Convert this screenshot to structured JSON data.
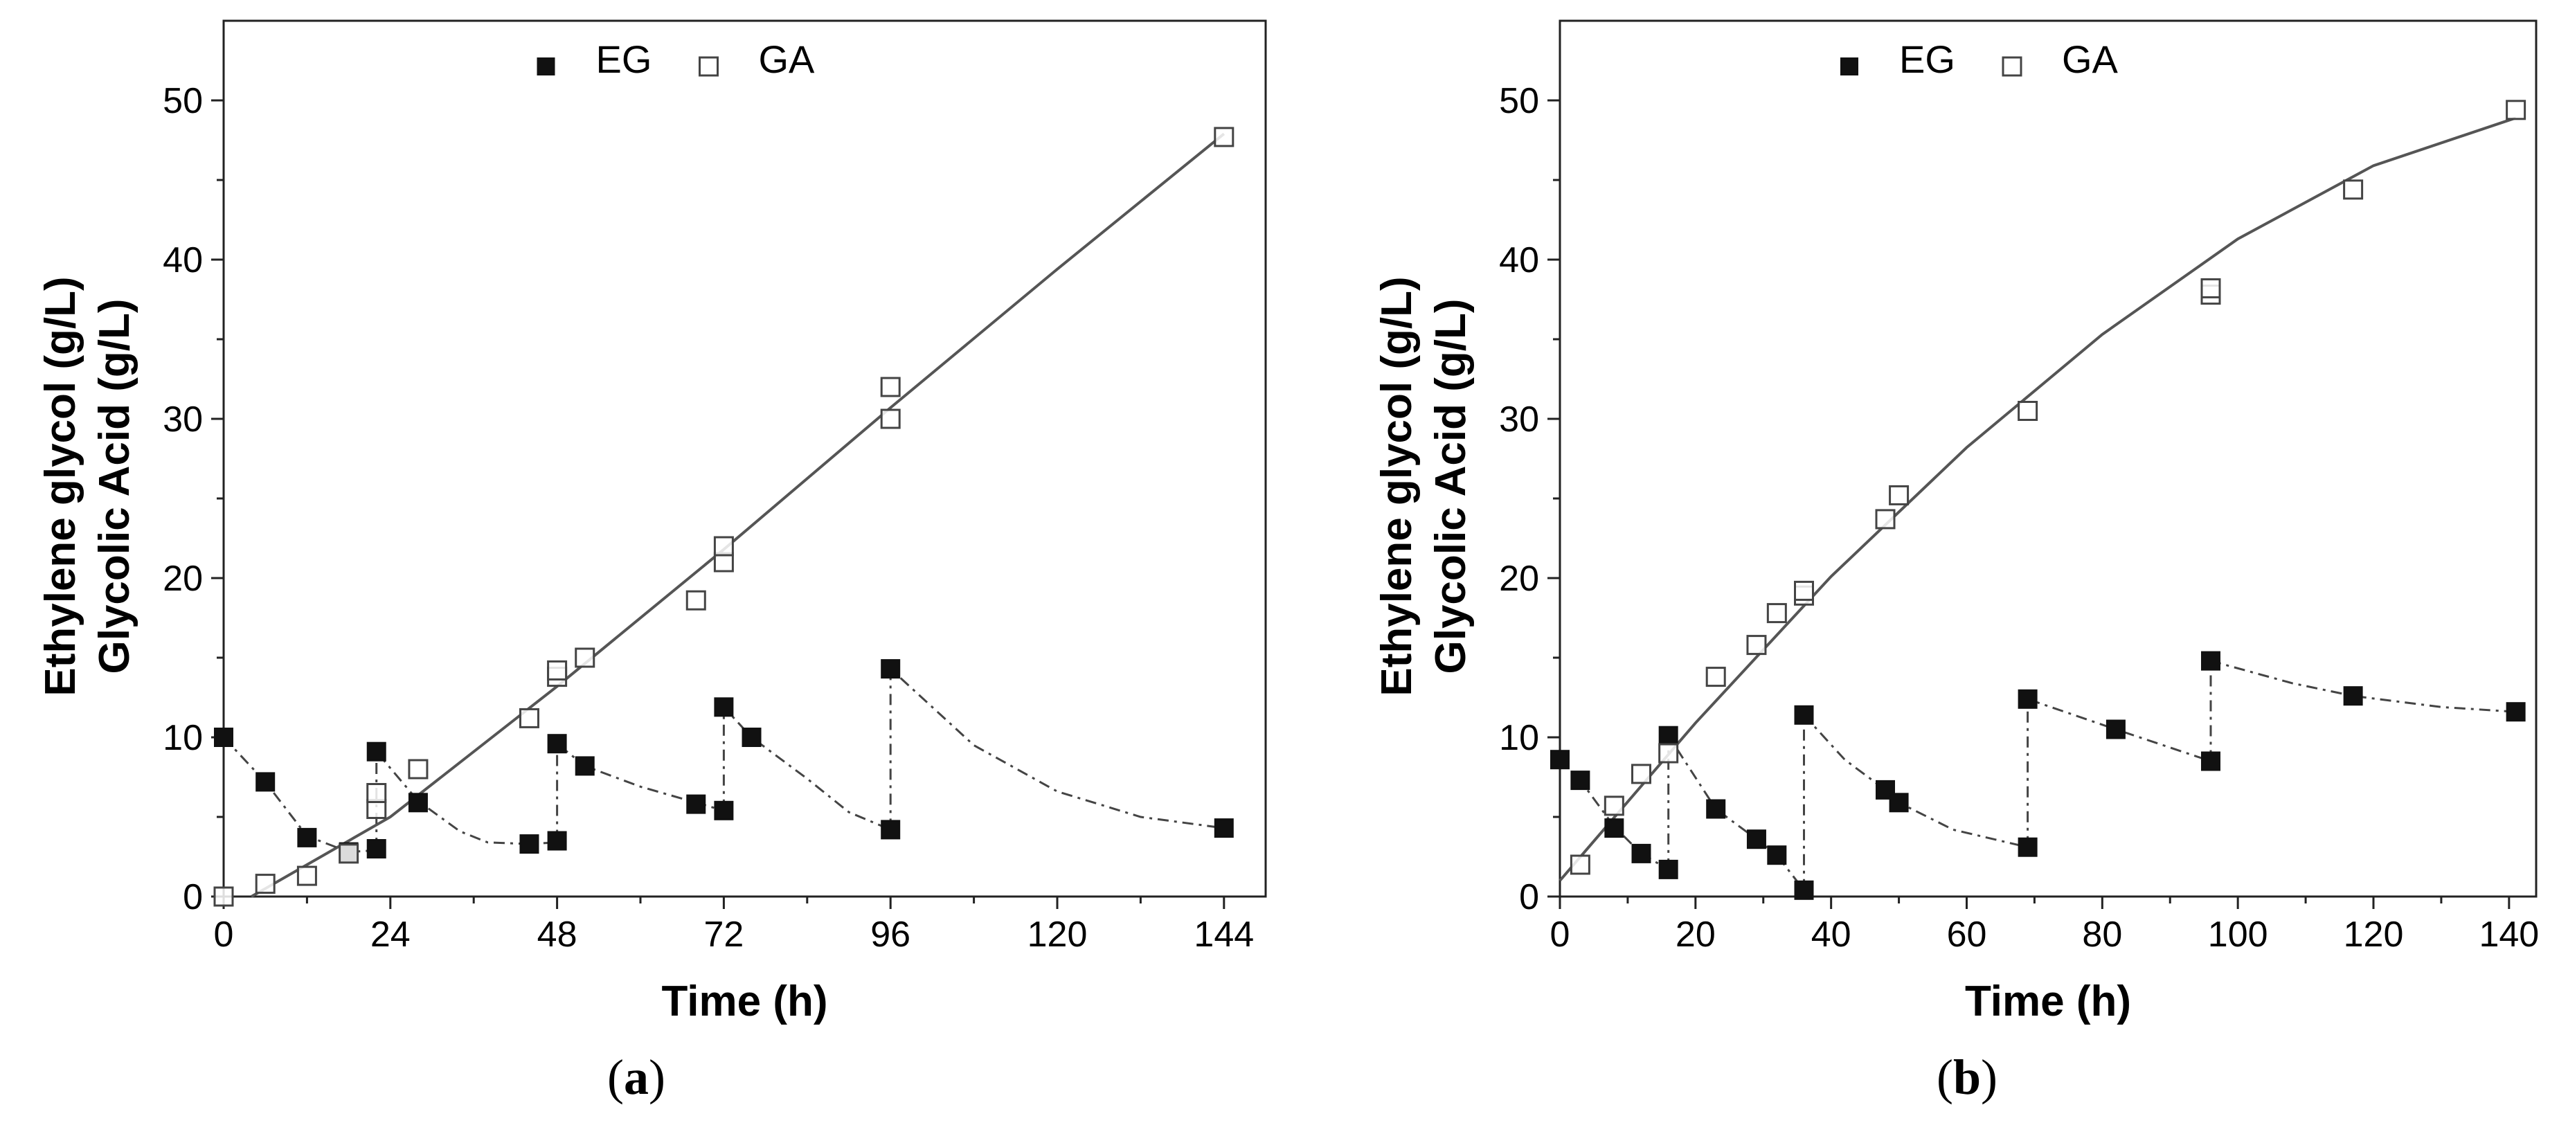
{
  "chart_data": [
    {
      "type": "scatter",
      "caption": "a",
      "xlabel": "Time (h)",
      "ylabel_line1": "Ethylene glycol (g/L)",
      "ylabel_line2": "Glycolic Acid (g/L)",
      "xlim": [
        0,
        150
      ],
      "ylim": [
        0,
        55
      ],
      "xticks": [
        0,
        24,
        48,
        72,
        96,
        120,
        144
      ],
      "yticks": [
        0,
        10,
        20,
        30,
        40,
        50
      ],
      "legend": {
        "placement": "top-center",
        "entries": [
          "EG",
          "GA"
        ]
      },
      "series": [
        {
          "name": "EG",
          "marker": "filled-square",
          "points": [
            [
              0,
              10
            ],
            [
              6,
              7.2
            ],
            [
              12,
              3.7
            ],
            [
              18,
              2.8
            ],
            [
              22,
              3.0
            ],
            [
              22,
              9.1
            ],
            [
              28,
              5.9
            ],
            [
              44,
              3.3
            ],
            [
              48,
              3.5
            ],
            [
              48,
              9.6
            ],
            [
              52,
              8.2
            ],
            [
              68,
              5.8
            ],
            [
              72,
              5.4
            ],
            [
              72,
              11.9
            ],
            [
              76,
              10
            ],
            [
              96,
              4.2
            ],
            [
              96,
              14.3
            ],
            [
              144,
              4.3
            ]
          ]
        },
        {
          "name": "GA",
          "marker": "open-square",
          "points": [
            [
              0,
              0
            ],
            [
              6,
              0.8
            ],
            [
              12,
              1.3
            ],
            [
              18,
              2.7
            ],
            [
              22,
              5.5
            ],
            [
              22,
              6.5
            ],
            [
              28,
              8.0
            ],
            [
              44,
              11.2
            ],
            [
              48,
              13.8
            ],
            [
              48,
              14.2
            ],
            [
              52,
              15
            ],
            [
              68,
              18.6
            ],
            [
              72,
              21
            ],
            [
              72,
              22
            ],
            [
              96,
              30
            ],
            [
              96,
              32
            ],
            [
              144,
              47.7
            ]
          ]
        }
      ],
      "fits": [
        {
          "series": "GA",
          "style": "solid",
          "points": [
            [
              4,
              0
            ],
            [
              24,
              5
            ],
            [
              48,
              13.2
            ],
            [
              72,
              21.8
            ],
            [
              96,
              30.7
            ],
            [
              120,
              39.4
            ],
            [
              144,
              47.9
            ]
          ]
        },
        {
          "series": "EG",
          "style": "dash-dot",
          "points": [
            [
              0,
              10
            ],
            [
              6,
              7.2
            ],
            [
              12,
              3.8
            ],
            [
              18,
              2.8
            ],
            [
              22,
              2.9
            ]
          ]
        },
        {
          "series": "EG",
          "style": "dash-dot",
          "points": [
            [
              22,
              3.0
            ],
            [
              22,
              9.1
            ],
            [
              28,
              6.0
            ],
            [
              34,
              4.1
            ],
            [
              38,
              3.4
            ],
            [
              44,
              3.3
            ],
            [
              48,
              3.4
            ]
          ]
        },
        {
          "series": "EG",
          "style": "dash-dot",
          "points": [
            [
              48,
              3.5
            ],
            [
              48,
              9.6
            ],
            [
              52,
              8.2
            ],
            [
              60,
              6.9
            ],
            [
              68,
              5.9
            ],
            [
              72,
              5.4
            ]
          ]
        },
        {
          "series": "EG",
          "style": "dash-dot",
          "points": [
            [
              72,
              5.4
            ],
            [
              72,
              11.9
            ],
            [
              76,
              10
            ],
            [
              84,
              7.4
            ],
            [
              90,
              5.3
            ],
            [
              96,
              4.2
            ]
          ]
        },
        {
          "series": "EG",
          "style": "dash-dot",
          "points": [
            [
              96,
              4.2
            ],
            [
              96,
              14.3
            ],
            [
              108,
              9.5
            ],
            [
              120,
              6.6
            ],
            [
              132,
              5.0
            ],
            [
              144,
              4.3
            ]
          ]
        }
      ]
    },
    {
      "type": "scatter",
      "caption": "b",
      "xlabel": "Time (h)",
      "ylabel_line1": "Ethylene glycol (g/L)",
      "ylabel_line2": "Glycolic Acid (g/L)",
      "xlim": [
        0,
        144
      ],
      "ylim": [
        0,
        55
      ],
      "xticks": [
        0,
        20,
        40,
        60,
        80,
        100,
        120,
        140
      ],
      "yticks": [
        0,
        10,
        20,
        30,
        40,
        50
      ],
      "legend": {
        "placement": "top-center",
        "entries": [
          "EG",
          "GA"
        ]
      },
      "series": [
        {
          "name": "EG",
          "marker": "filled-square",
          "points": [
            [
              0,
              8.6
            ],
            [
              3,
              7.3
            ],
            [
              8,
              4.3
            ],
            [
              12,
              2.7
            ],
            [
              16,
              1.7
            ],
            [
              16,
              10.1
            ],
            [
              23,
              5.5
            ],
            [
              29,
              3.6
            ],
            [
              32,
              2.6
            ],
            [
              36,
              0.4
            ],
            [
              36,
              11.4
            ],
            [
              48,
              6.7
            ],
            [
              50,
              5.9
            ],
            [
              69,
              3.1
            ],
            [
              69,
              12.4
            ],
            [
              82,
              10.5
            ],
            [
              96,
              8.5
            ],
            [
              96,
              14.8
            ],
            [
              117,
              12.6
            ],
            [
              141,
              11.6
            ]
          ]
        },
        {
          "name": "GA",
          "marker": "open-square",
          "points": [
            [
              3,
              2.0
            ],
            [
              8,
              5.7
            ],
            [
              12,
              7.7
            ],
            [
              16,
              9.0
            ],
            [
              23,
              13.8
            ],
            [
              29,
              15.8
            ],
            [
              32,
              17.8
            ],
            [
              36,
              18.9
            ],
            [
              36,
              19.2
            ],
            [
              48,
              23.7
            ],
            [
              50,
              25.2
            ],
            [
              69,
              30.5
            ],
            [
              96,
              37.8
            ],
            [
              96,
              38.2
            ],
            [
              117,
              44.4
            ],
            [
              141,
              49.4
            ]
          ]
        }
      ],
      "fits": [
        {
          "series": "GA",
          "style": "solid",
          "points": [
            [
              0,
              1
            ],
            [
              20,
              10.9
            ],
            [
              40,
              20.1
            ],
            [
              60,
              28.2
            ],
            [
              80,
              35.3
            ],
            [
              100,
              41.3
            ],
            [
              120,
              45.9
            ],
            [
              141,
              48.9
            ]
          ]
        },
        {
          "series": "EG",
          "style": "dash-dot",
          "points": [
            [
              0,
              8.6
            ],
            [
              3,
              7.3
            ],
            [
              8,
              4.4
            ],
            [
              12,
              2.7
            ],
            [
              16,
              1.7
            ]
          ]
        },
        {
          "series": "EG",
          "style": "dash-dot",
          "points": [
            [
              16,
              1.7
            ],
            [
              16,
              10.1
            ],
            [
              23,
              5.5
            ],
            [
              29,
              3.6
            ],
            [
              32,
              2.6
            ],
            [
              36,
              0.4
            ]
          ]
        },
        {
          "series": "EG",
          "style": "dash-dot",
          "points": [
            [
              36,
              0.4
            ],
            [
              36,
              11.4
            ],
            [
              42,
              8.6
            ],
            [
              48,
              6.7
            ],
            [
              50,
              5.9
            ],
            [
              58,
              4.2
            ],
            [
              69,
              3.1
            ]
          ]
        },
        {
          "series": "EG",
          "style": "dash-dot",
          "points": [
            [
              69,
              3.1
            ],
            [
              69,
              12.4
            ],
            [
              82,
              10.5
            ],
            [
              96,
              8.5
            ]
          ]
        },
        {
          "series": "EG",
          "style": "dash-dot",
          "points": [
            [
              96,
              8.5
            ],
            [
              96,
              14.8
            ],
            [
              108,
              13.4
            ],
            [
              117,
              12.6
            ],
            [
              130,
              11.9
            ],
            [
              141,
              11.6
            ]
          ]
        }
      ]
    }
  ]
}
